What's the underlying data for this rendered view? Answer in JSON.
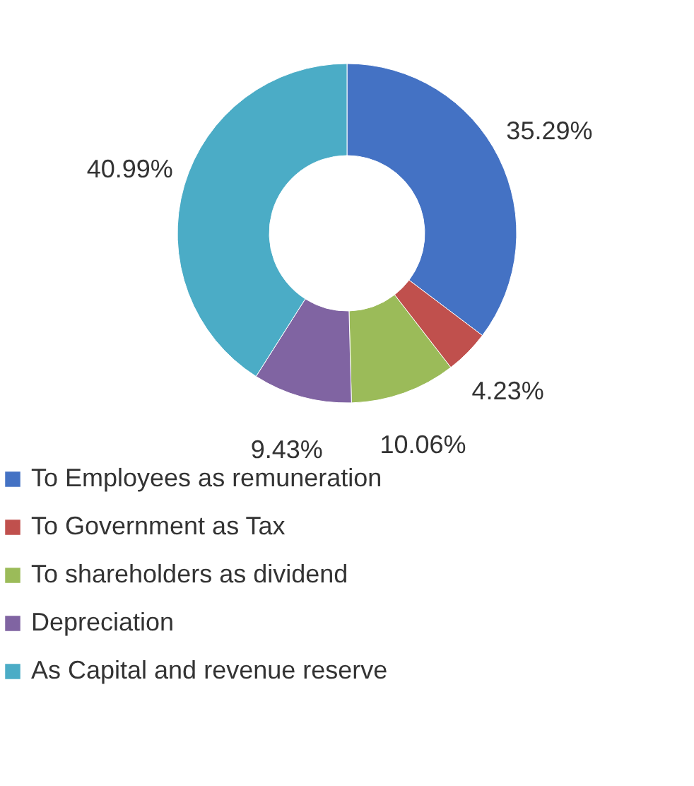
{
  "chart_data": {
    "type": "donut",
    "categories": [
      "To Employees as remuneration",
      "To Government as Tax",
      "To shareholders as dividend",
      "Depreciation",
      "As Capital and revenue reserve"
    ],
    "values": [
      35.29,
      4.23,
      10.06,
      9.43,
      40.99
    ],
    "value_labels": [
      "35.29%",
      "4.23%",
      "10.06%",
      "9.43%",
      "40.99%"
    ],
    "colors": [
      "#4472c4",
      "#c0504d",
      "#9bbb59",
      "#8064a2",
      "#4bacc6"
    ],
    "legend": "bottom"
  }
}
